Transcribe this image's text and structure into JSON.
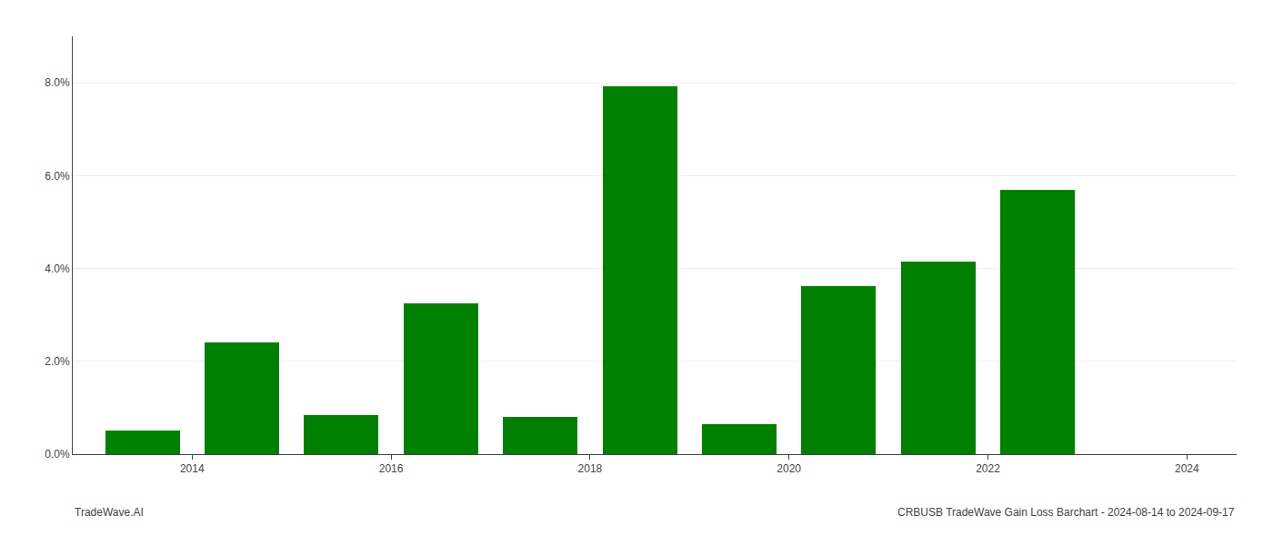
{
  "chart_data": {
    "type": "bar",
    "x": [
      2014,
      2015,
      2016,
      2017,
      2018,
      2019,
      2020,
      2021,
      2022,
      2023
    ],
    "values": [
      0.0051,
      0.024,
      0.0085,
      0.0325,
      0.008,
      0.0792,
      0.0065,
      0.0362,
      0.0415,
      0.057
    ],
    "color": "#008000",
    "xlim": [
      2013.3,
      2025.0
    ],
    "xticks": [
      {
        "value": 2014.5,
        "label": "2014"
      },
      {
        "value": 2016.5,
        "label": "2016"
      },
      {
        "value": 2018.5,
        "label": "2018"
      },
      {
        "value": 2020.5,
        "label": "2020"
      },
      {
        "value": 2022.5,
        "label": "2022"
      },
      {
        "value": 2024.5,
        "label": "2024"
      }
    ],
    "ylim": [
      0,
      0.09
    ],
    "yticks": [
      {
        "value": 0.0,
        "label": "0.0%"
      },
      {
        "value": 0.02,
        "label": "2.0%"
      },
      {
        "value": 0.04,
        "label": "4.0%"
      },
      {
        "value": 0.06,
        "label": "6.0%"
      },
      {
        "value": 0.08,
        "label": "8.0%"
      }
    ],
    "grid": true,
    "annotations": [
      "TradeWave.AI",
      "CRBUSB TradeWave Gain Loss Barchart - 2024-08-14 to 2024-09-17"
    ]
  }
}
